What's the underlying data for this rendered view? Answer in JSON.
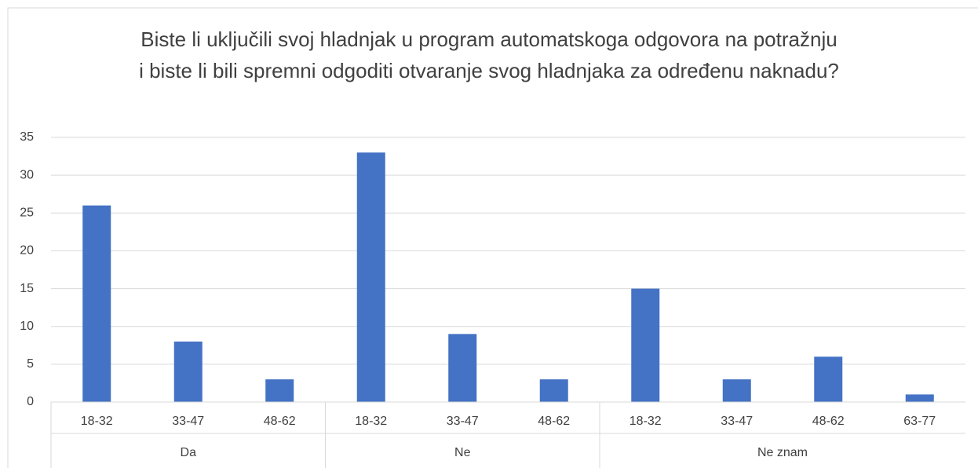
{
  "chart_data": {
    "type": "bar",
    "title": "Biste li uključili svoj hladnjak u program automatskoga odgovora na potražnju i biste li bili spremni odgoditi otvaranje svog hladnjaka za određenu naknadu?",
    "groups": [
      {
        "name": "Da",
        "categories": [
          "18-32",
          "33-47",
          "48-62"
        ],
        "values": [
          26,
          8,
          3
        ]
      },
      {
        "name": "Ne",
        "categories": [
          "18-32",
          "33-47",
          "48-62"
        ],
        "values": [
          33,
          9,
          3
        ]
      },
      {
        "name": "Ne znam",
        "categories": [
          "18-32",
          "33-47",
          "48-62",
          "63-77"
        ],
        "values": [
          15,
          3,
          6,
          1
        ]
      }
    ],
    "color": "#4472c4",
    "ylim": [
      0,
      35
    ],
    "yticks": [
      0,
      5,
      10,
      15,
      20,
      25,
      30,
      35
    ],
    "grid": true
  }
}
